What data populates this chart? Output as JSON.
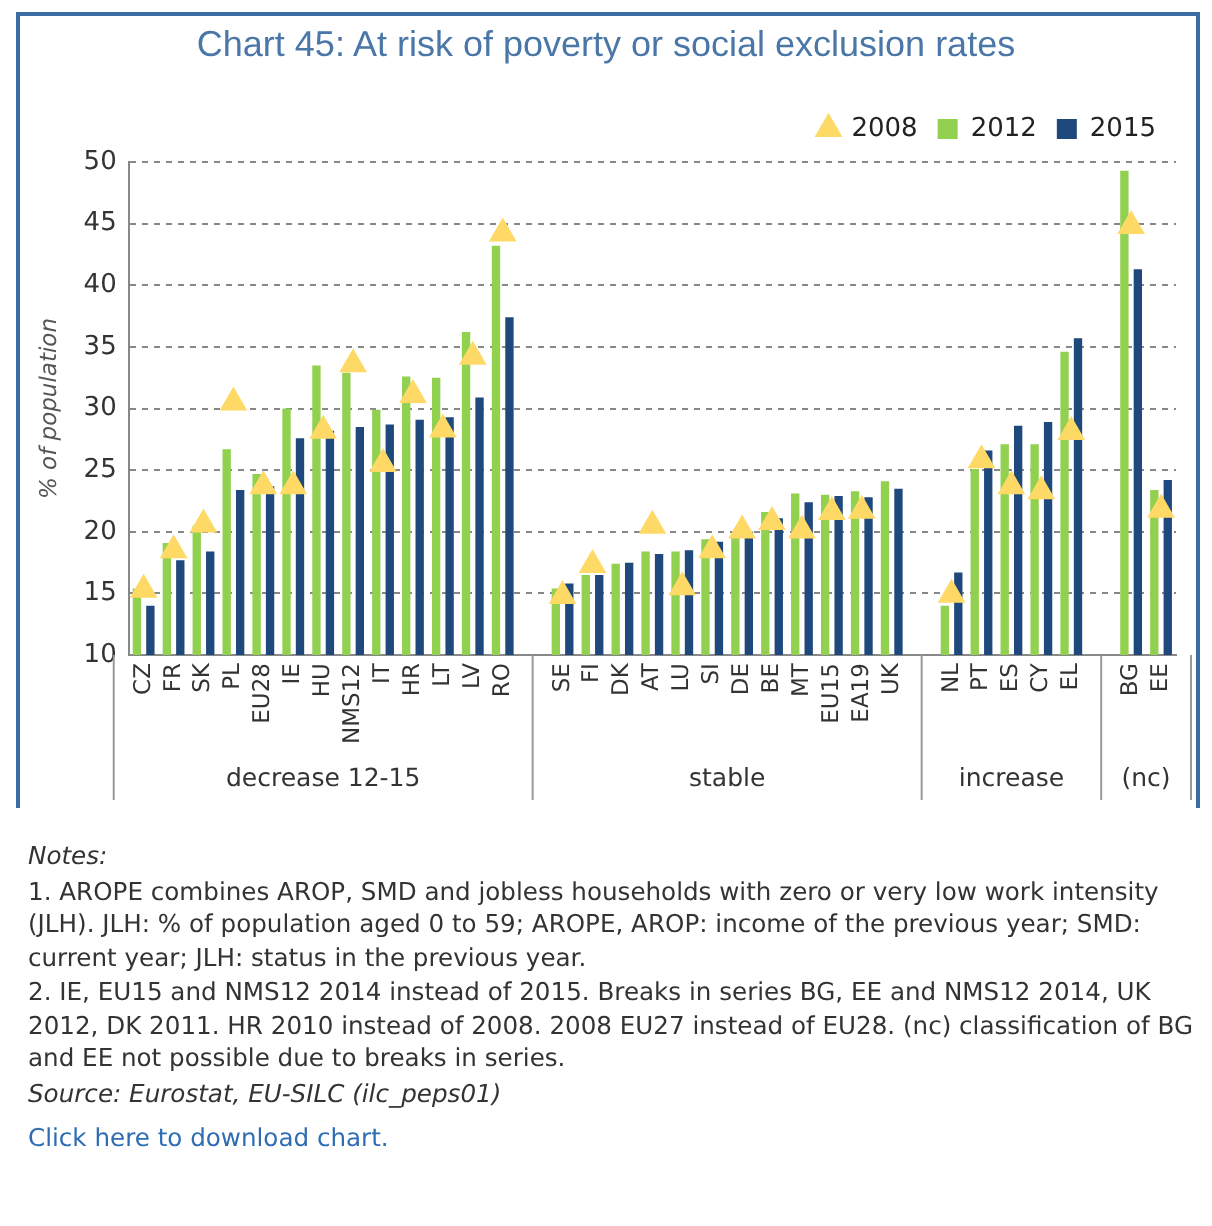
{
  "chart_data": {
    "type": "bar",
    "title": "Chart 45: At risk of poverty or social exclusion rates",
    "ylabel": "% of population",
    "categories": [
      "CZ",
      "FR",
      "SK",
      "PL",
      "EU28",
      "IE",
      "HU",
      "NMS12",
      "IT",
      "HR",
      "LT",
      "LV",
      "RO",
      null,
      "SE",
      "FI",
      "DK",
      "AT",
      "LU",
      "SI",
      "DE",
      "BE",
      "MT",
      "EU15",
      "EA19",
      "UK",
      null,
      "NL",
      "PT",
      "ES",
      "CY",
      "EL",
      null,
      "BG",
      "EE"
    ],
    "series": [
      {
        "name": "2012",
        "color": "#92d050",
        "values": [
          15.4,
          19.1,
          20.5,
          26.7,
          24.7,
          30.0,
          33.5,
          32.9,
          29.9,
          32.6,
          32.5,
          36.2,
          43.2,
          null,
          15.4,
          16.5,
          17.4,
          18.4,
          18.4,
          19.4,
          19.6,
          21.6,
          23.1,
          23.0,
          23.3,
          24.1,
          null,
          14.0,
          25.1,
          27.1,
          27.1,
          34.6,
          null,
          49.3,
          23.4
        ]
      },
      {
        "name": "2015",
        "color": "#1f497d",
        "values": [
          14.0,
          17.7,
          18.4,
          23.4,
          23.7,
          27.6,
          28.2,
          28.5,
          28.7,
          29.1,
          29.3,
          30.9,
          37.4,
          null,
          15.8,
          16.5,
          17.5,
          18.2,
          18.5,
          19.2,
          20.0,
          21.1,
          22.4,
          22.9,
          22.8,
          23.5,
          null,
          16.7,
          26.6,
          28.6,
          28.9,
          35.7,
          null,
          41.3,
          24.2
        ]
      },
      {
        "name": "2008",
        "type": "scatter",
        "marker": "triangle",
        "color": "#ffd966",
        "values": [
          15.3,
          18.5,
          20.6,
          30.5,
          23.7,
          23.7,
          28.2,
          33.6,
          25.5,
          31.1,
          28.3,
          34.2,
          44.2,
          null,
          14.8,
          17.3,
          null,
          20.5,
          15.5,
          18.5,
          20.1,
          20.8,
          20.1,
          21.6,
          21.7,
          null,
          null,
          14.9,
          25.8,
          23.7,
          23.3,
          28.1,
          null,
          44.8,
          21.8
        ]
      }
    ],
    "ylim": [
      10,
      50
    ],
    "yticks": [
      10,
      15,
      20,
      25,
      30,
      35,
      40,
      45,
      50
    ],
    "grid": "y",
    "legend": "top right",
    "annotations": [
      {
        "text": "decrease 12-15",
        "x": "NMS12"
      },
      {
        "text": "stable",
        "x": "DE"
      },
      {
        "text": "increase",
        "x": "ES"
      },
      {
        "text": "(nc)",
        "x": "BG"
      },
      "Notes:",
      "1. AROPE combines AROP, SMD and jobless households with zero or very low work intensity (JLH). JLH: % of population aged 0 to 59; AROPE, AROP: income of the previous year; SMD: current year; JLH: status in the previous year.",
      "2. IE, EU15 and NMS12 2014 instead of 2015. Breaks in series BG, EE and NMS12 2014, UK 2012, DK 2011. HR 2010 instead of 2008. 2008 EU27 instead of EU28. (nc) classification of BG and EE not possible due to breaks in series.",
      "Source: Eurostat, EU-SILC (ilc_peps01)",
      "Click here to download chart."
    ]
  }
}
